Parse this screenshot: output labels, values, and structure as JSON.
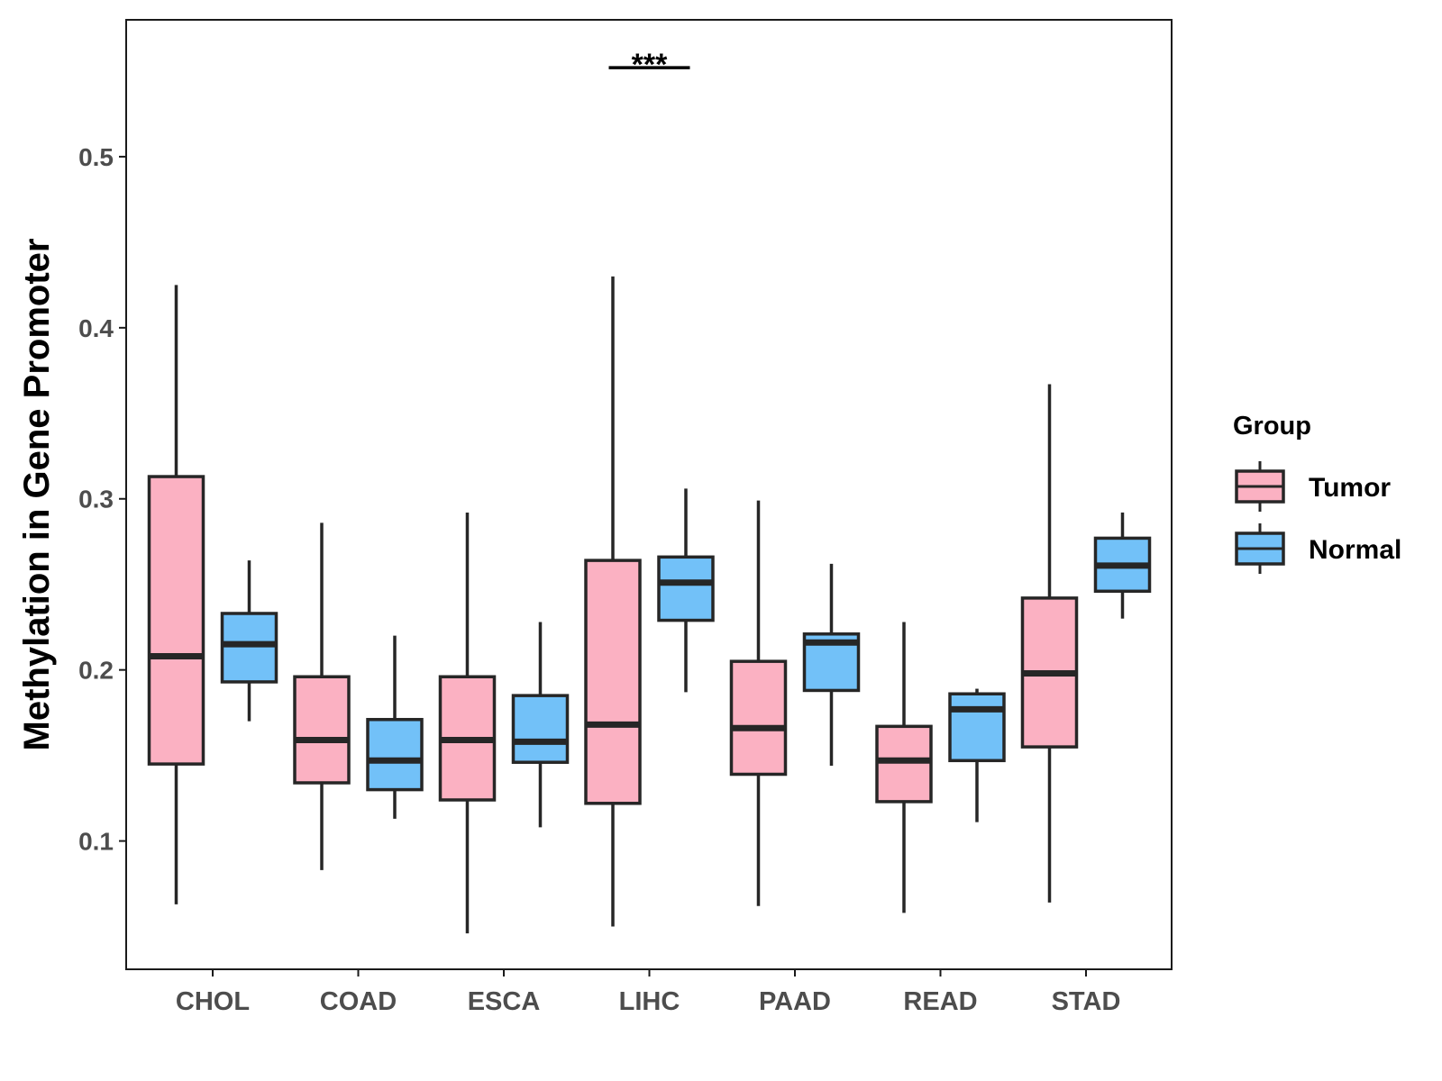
{
  "chart_data": {
    "type": "boxplot",
    "title": "",
    "xlabel": "",
    "ylabel": "Methylation in Gene Promoter",
    "ylim": [
      0.025,
      0.58
    ],
    "yticks": [
      0.1,
      0.2,
      0.3,
      0.4,
      0.5
    ],
    "ytick_labels": [
      "0.1",
      "0.2",
      "0.3",
      "0.4",
      "0.5"
    ],
    "categories": [
      "CHOL",
      "COAD",
      "ESCA",
      "LIHC",
      "PAAD",
      "READ",
      "STAD"
    ],
    "legend": {
      "title": "Group",
      "position": "right",
      "entries": [
        "Tumor",
        "Normal"
      ]
    },
    "grid": false,
    "series": [
      {
        "name": "Tumor",
        "color": "#fbb1c2",
        "boxes": [
          {
            "category": "CHOL",
            "min": 0.063,
            "q1": 0.145,
            "median": 0.208,
            "q3": 0.313,
            "max": 0.425
          },
          {
            "category": "COAD",
            "min": 0.083,
            "q1": 0.134,
            "median": 0.159,
            "q3": 0.196,
            "max": 0.286
          },
          {
            "category": "ESCA",
            "min": 0.046,
            "q1": 0.124,
            "median": 0.159,
            "q3": 0.196,
            "max": 0.292
          },
          {
            "category": "LIHC",
            "min": 0.05,
            "q1": 0.122,
            "median": 0.168,
            "q3": 0.264,
            "max": 0.43
          },
          {
            "category": "PAAD",
            "min": 0.062,
            "q1": 0.139,
            "median": 0.166,
            "q3": 0.205,
            "max": 0.299
          },
          {
            "category": "READ",
            "min": 0.058,
            "q1": 0.123,
            "median": 0.147,
            "q3": 0.167,
            "max": 0.228
          },
          {
            "category": "STAD",
            "min": 0.064,
            "q1": 0.155,
            "median": 0.198,
            "q3": 0.242,
            "max": 0.367
          }
        ]
      },
      {
        "name": "Normal",
        "color": "#72c1f8",
        "boxes": [
          {
            "category": "CHOL",
            "min": 0.17,
            "q1": 0.193,
            "median": 0.215,
            "q3": 0.233,
            "max": 0.264
          },
          {
            "category": "COAD",
            "min": 0.113,
            "q1": 0.13,
            "median": 0.147,
            "q3": 0.171,
            "max": 0.22
          },
          {
            "category": "ESCA",
            "min": 0.108,
            "q1": 0.146,
            "median": 0.158,
            "q3": 0.185,
            "max": 0.228
          },
          {
            "category": "LIHC",
            "min": 0.187,
            "q1": 0.229,
            "median": 0.251,
            "q3": 0.266,
            "max": 0.306
          },
          {
            "category": "PAAD",
            "min": 0.144,
            "q1": 0.188,
            "median": 0.216,
            "q3": 0.221,
            "max": 0.262
          },
          {
            "category": "READ",
            "min": 0.111,
            "q1": 0.147,
            "median": 0.177,
            "q3": 0.186,
            "max": 0.189
          },
          {
            "category": "STAD",
            "min": 0.23,
            "q1": 0.246,
            "median": 0.261,
            "q3": 0.277,
            "max": 0.292
          }
        ]
      }
    ],
    "annotations": [
      {
        "category": "LIHC",
        "text": "***",
        "y": 0.552
      }
    ]
  }
}
